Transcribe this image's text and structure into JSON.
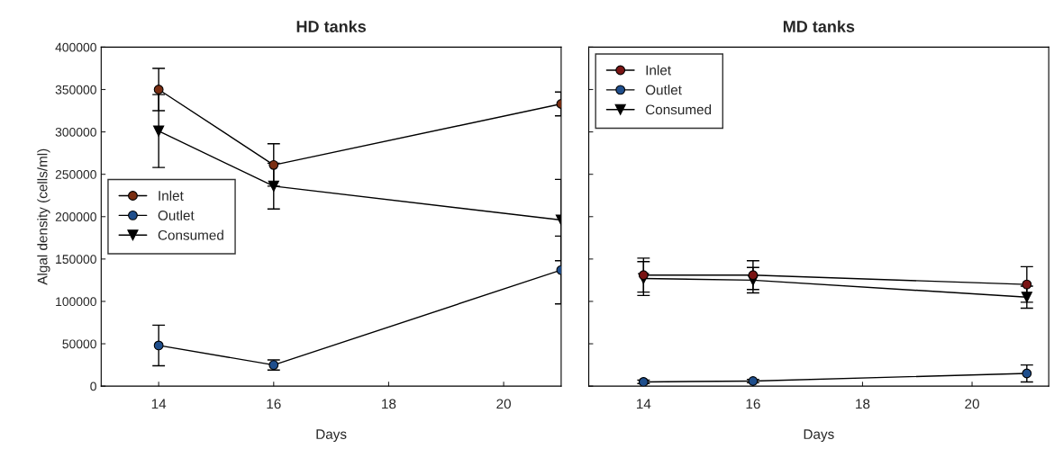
{
  "chart_data": [
    {
      "type": "line",
      "title": "HD tanks",
      "xlabel": "Days",
      "ylabel": "Algal density (cells/ml)",
      "x": [
        14,
        16,
        21
      ],
      "xlim": [
        13,
        21
      ],
      "xticks": [
        14,
        16,
        18,
        20
      ],
      "ylim": [
        0,
        400000
      ],
      "yticks": [
        0,
        50000,
        100000,
        150000,
        200000,
        250000,
        300000,
        350000,
        400000
      ],
      "legend": "center left",
      "grid": false,
      "series": [
        {
          "name": "Inlet",
          "color": "#7a2e12",
          "marker": "circle",
          "values": [
            350000,
            261000,
            333000
          ],
          "errors": [
            25000,
            25000,
            14000
          ]
        },
        {
          "name": "Outlet",
          "color": "#1f4e8c",
          "marker": "circle",
          "values": [
            48000,
            25000,
            137000
          ],
          "errors": [
            24000,
            6000,
            40000
          ]
        },
        {
          "name": "Consumed",
          "color": "#000000",
          "marker": "triangle",
          "values": [
            301000,
            236000,
            196000
          ],
          "errors": [
            43000,
            27000,
            48000
          ]
        }
      ]
    },
    {
      "type": "line",
      "title": "MD tanks",
      "xlabel": "Days",
      "x": [
        14,
        16,
        21
      ],
      "xlim": [
        13,
        21.4
      ],
      "xticks": [
        14,
        16,
        18,
        20
      ],
      "ylim": [
        0,
        400000
      ],
      "yticks": [
        0,
        50000,
        100000,
        150000,
        200000,
        250000,
        300000,
        350000,
        400000
      ],
      "tick_labels": "x",
      "legend": "upper left",
      "grid": false,
      "series": [
        {
          "name": "Inlet",
          "color": "#7a1414",
          "marker": "circle",
          "values": [
            131000,
            131000,
            120000
          ],
          "errors": [
            20000,
            17000,
            21000
          ]
        },
        {
          "name": "Outlet",
          "color": "#1f4e8c",
          "marker": "circle",
          "values": [
            5000,
            6000,
            15000
          ],
          "errors": [
            2000,
            2000,
            10000
          ]
        },
        {
          "name": "Consumed",
          "color": "#000000",
          "marker": "triangle",
          "values": [
            127000,
            125000,
            105000
          ],
          "errors": [
            20000,
            15000,
            13000
          ]
        }
      ]
    }
  ]
}
